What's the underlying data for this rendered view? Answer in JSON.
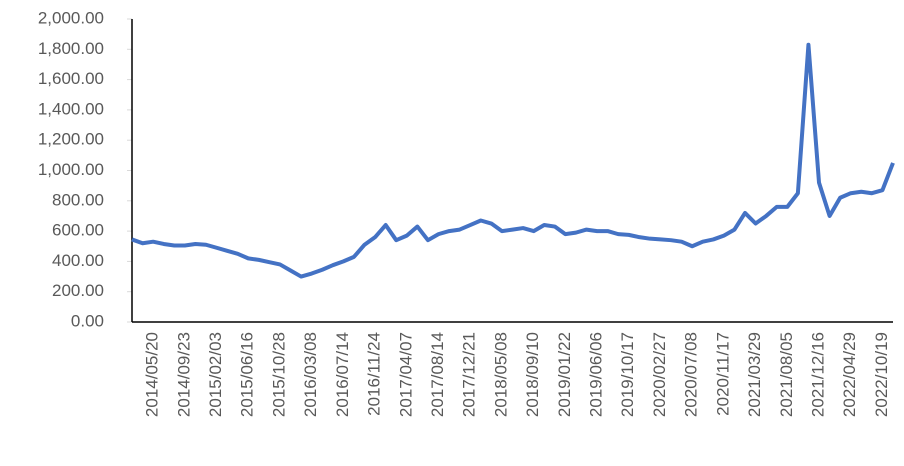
{
  "chart_data": {
    "type": "line",
    "categories": [
      null,
      null,
      "2014/05/20",
      null,
      null,
      "2014/09/23",
      null,
      null,
      "2015/02/03",
      null,
      null,
      "2015/06/16",
      null,
      null,
      "2015/10/28",
      null,
      null,
      "2016/03/08",
      null,
      null,
      "2016/07/14",
      null,
      null,
      "2016/11/24",
      null,
      null,
      "2017/04/07",
      null,
      null,
      "2017/08/14",
      null,
      null,
      "2017/12/21",
      null,
      null,
      "2018/05/08",
      null,
      null,
      "2018/09/10",
      null,
      null,
      "2019/01/22",
      null,
      null,
      "2019/06/06",
      null,
      null,
      "2019/10/17",
      null,
      null,
      "2020/02/27",
      null,
      null,
      "2020/07/08",
      null,
      null,
      "2020/11/17",
      null,
      null,
      "2021/03/29",
      null,
      null,
      "2021/08/05",
      null,
      null,
      "2021/12/16",
      null,
      null,
      "2022/04/29",
      null,
      null,
      "2022/10/19",
      null
    ],
    "series": [
      {
        "color": "#4472c4",
        "values": [
          545,
          520,
          530,
          515,
          505,
          505,
          515,
          510,
          490,
          470,
          450,
          420,
          410,
          395,
          380,
          340,
          300,
          320,
          345,
          375,
          400,
          430,
          510,
          560,
          640,
          540,
          570,
          630,
          540,
          580,
          600,
          610,
          640,
          670,
          650,
          600,
          610,
          620,
          600,
          640,
          630,
          580,
          590,
          610,
          600,
          600,
          580,
          575,
          560,
          550,
          545,
          540,
          530,
          500,
          530,
          545,
          570,
          610,
          720,
          650,
          700,
          760,
          760,
          850,
          1830,
          920,
          700,
          820,
          850,
          860,
          850,
          870,
          1050
        ]
      }
    ],
    "ylim": [
      0,
      2000
    ],
    "yticks": [
      {
        "value": 0,
        "label": "0.00"
      },
      {
        "value": 200,
        "label": "200.00"
      },
      {
        "value": 400,
        "label": "400.00"
      },
      {
        "value": 600,
        "label": "600.00"
      },
      {
        "value": 800,
        "label": "800.00"
      },
      {
        "value": 1000,
        "label": "1,000.00"
      },
      {
        "value": 1200,
        "label": "1,200.00"
      },
      {
        "value": 1400,
        "label": "1,400.00"
      },
      {
        "value": 1600,
        "label": "1,600.00"
      },
      {
        "value": 1800,
        "label": "1,800.00"
      },
      {
        "value": 2000,
        "label": "2,000.00"
      }
    ],
    "grid": false
  }
}
